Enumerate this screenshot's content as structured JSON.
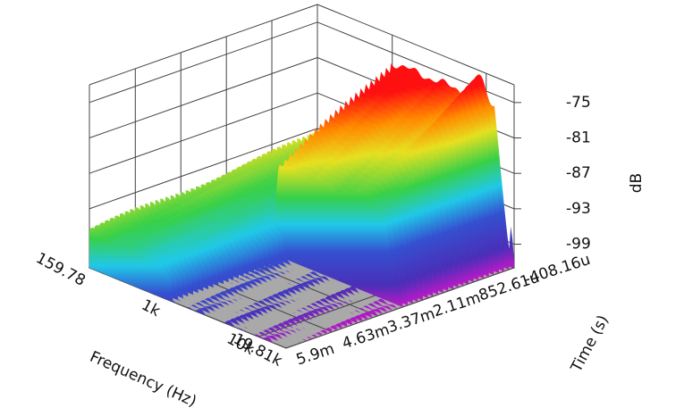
{
  "chart_data": {
    "type": "waterfall3d",
    "xlabel": "Frequency (Hz)",
    "ylabel": "Time (s)",
    "zlabel": "dB",
    "xscale": "log",
    "xlim": [
      159.78,
      19810
    ],
    "xticks": [
      159.78,
      {
        "value": 1000,
        "label": "1k"
      },
      {
        "value": 10000,
        "label": "10k"
      },
      {
        "value": 19810,
        "label": "19.81k"
      }
    ],
    "ylim": [
      -0.00040816,
      0.0059
    ],
    "yticks": [
      {
        "value": -0.00040816,
        "label": "-408.16u"
      },
      {
        "value": 0.00085261,
        "label": "852.61u"
      },
      {
        "value": 0.00211,
        "label": "2.11m"
      },
      {
        "value": 0.00337,
        "label": "3.37m"
      },
      {
        "value": 0.00463,
        "label": "4.63m"
      },
      {
        "value": 0.0059,
        "label": "5.9m"
      }
    ],
    "zlim": [
      -103,
      -72
    ],
    "zticks": [
      -75,
      -81,
      -87,
      -93,
      -99
    ],
    "grid": true
  }
}
